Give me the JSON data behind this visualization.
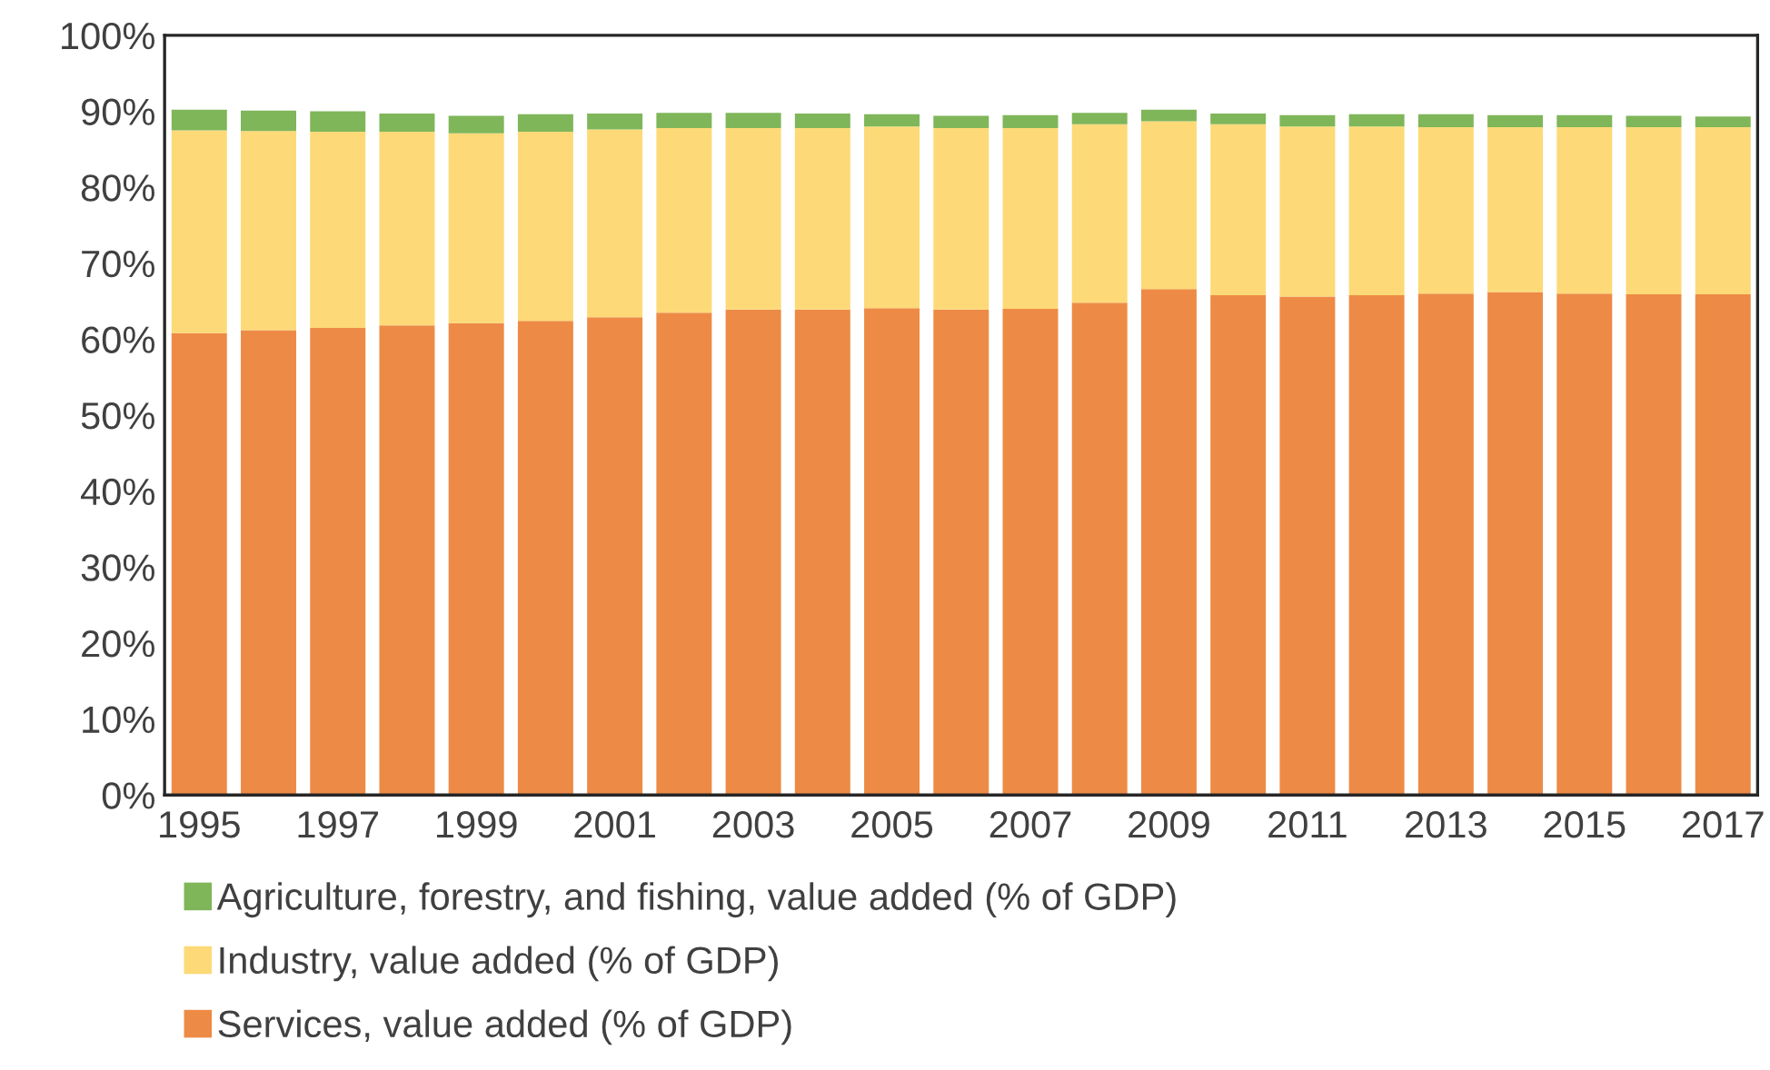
{
  "chart_data": {
    "type": "bar",
    "stacked": true,
    "categories": [
      "1995",
      null,
      "1997",
      null,
      "1999",
      null,
      "2001",
      null,
      "2003",
      null,
      "2005",
      null,
      "2007",
      null,
      "2009",
      null,
      "2011",
      null,
      "2013",
      null,
      "2015",
      null,
      "2017"
    ],
    "series": [
      {
        "name": "Services, value added (% of GDP)",
        "color": "#ed8b46",
        "values": [
          60.8,
          61.2,
          61.5,
          61.8,
          62.1,
          62.4,
          62.9,
          63.5,
          63.9,
          63.9,
          64.1,
          63.9,
          64.0,
          64.8,
          66.6,
          65.8,
          65.6,
          65.8,
          66.0,
          66.2,
          66.0,
          65.9,
          65.9
        ]
      },
      {
        "name": "Industry, value added (% of GDP)",
        "color": "#fdda77",
        "values": [
          26.7,
          26.2,
          25.8,
          25.5,
          25.0,
          24.9,
          24.7,
          24.3,
          23.9,
          23.9,
          23.9,
          23.9,
          23.8,
          23.5,
          22.1,
          22.5,
          22.4,
          22.2,
          21.9,
          21.7,
          21.9,
          22.0,
          22.0
        ]
      },
      {
        "name": "Agriculture, forestry, and fishing, value added (% of GDP)",
        "color": "#7fb65a",
        "values": [
          2.7,
          2.7,
          2.7,
          2.4,
          2.3,
          2.3,
          2.1,
          2.0,
          2.0,
          1.9,
          1.6,
          1.6,
          1.7,
          1.5,
          1.5,
          1.4,
          1.5,
          1.6,
          1.7,
          1.6,
          1.6,
          1.5,
          1.4
        ]
      }
    ],
    "ylim": [
      0,
      100
    ],
    "yticks": [
      {
        "value": 0,
        "label": "0%"
      },
      {
        "value": 10,
        "label": "10%"
      },
      {
        "value": 20,
        "label": "20%"
      },
      {
        "value": 30,
        "label": "30%"
      },
      {
        "value": 40,
        "label": "40%"
      },
      {
        "value": 50,
        "label": "50%"
      },
      {
        "value": 60,
        "label": "60%"
      },
      {
        "value": 70,
        "label": "70%"
      },
      {
        "value": 80,
        "label": "80%"
      },
      {
        "value": 90,
        "label": "90%"
      },
      {
        "value": 100,
        "label": "100%"
      }
    ],
    "grid": false,
    "legend": "bottom"
  }
}
